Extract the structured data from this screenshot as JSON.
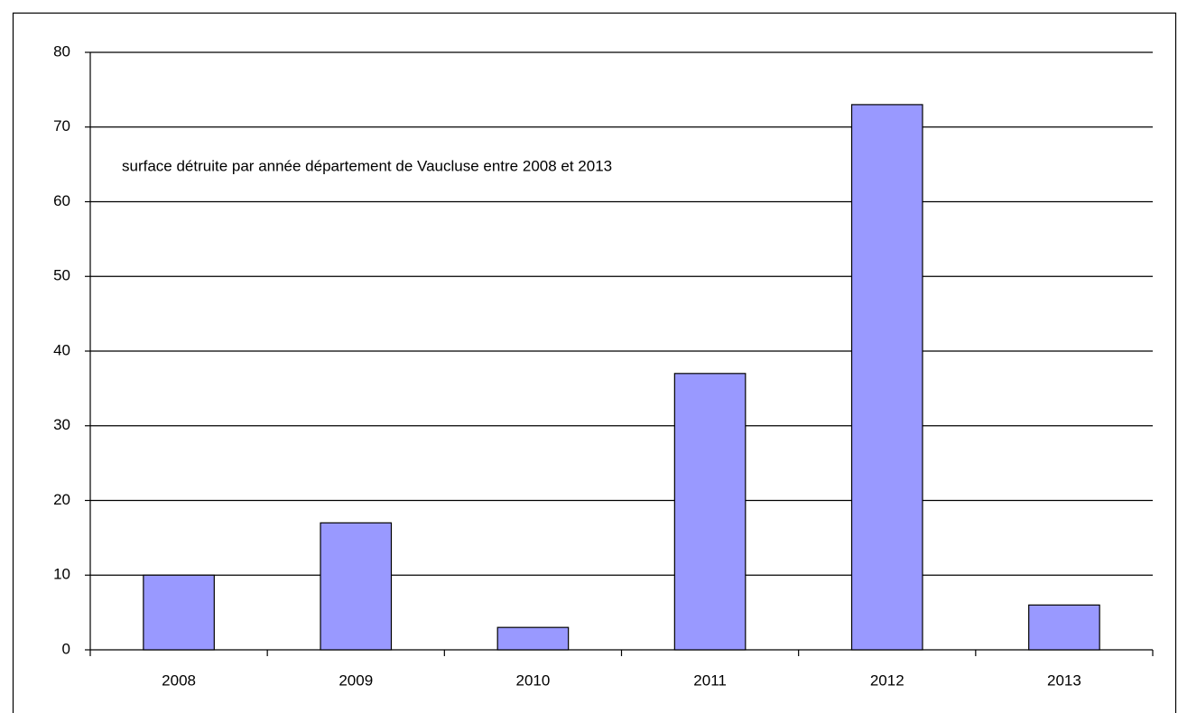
{
  "chart_data": {
    "type": "bar",
    "annotation": "surface détruite par année département de Vaucluse entre 2008 et 2013",
    "categories": [
      "2008",
      "2009",
      "2010",
      "2011",
      "2012",
      "2013"
    ],
    "values": [
      10,
      17,
      3,
      37,
      73,
      6
    ],
    "color": "#9999ff",
    "ylim": [
      0,
      80
    ],
    "yticks": [
      0,
      10,
      20,
      30,
      40,
      50,
      60,
      70,
      80
    ],
    "grid": true
  }
}
